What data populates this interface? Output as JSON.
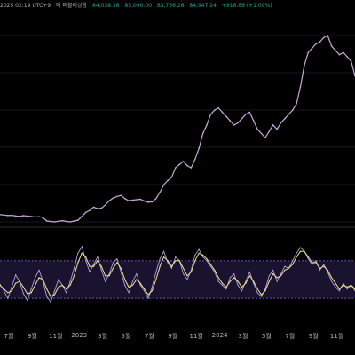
{
  "header": {
    "timestamp": "2025 02:19 UTC+9",
    "note": "에 퍼블리싱함",
    "open": "84,038.38",
    "high": "85,090.00",
    "low": "83,736.26",
    "close": "84,947.24",
    "change": "+916.86 (+1.09%)"
  },
  "colors": {
    "background": "#000000",
    "price_line": "#c8a8d8",
    "oscillator_fast": "#b39ddb",
    "oscillator_slow": "#f0e68c",
    "band_fill": "#1a1330",
    "band_line": "#7e57c2",
    "header_values": "#26a69a"
  },
  "x_axis": {
    "ticks": [
      "7월",
      "9월",
      "11월",
      "2023",
      "3월",
      "5월",
      "7월",
      "9월",
      "11월",
      "2024",
      "3월",
      "5월",
      "7월",
      "9월",
      "11월"
    ]
  },
  "chart_data": [
    {
      "type": "line",
      "title": "",
      "xlabel": "",
      "ylabel": "",
      "series": [
        {
          "values": [
            20000,
            19800,
            19600,
            19700,
            19400,
            19200,
            19500,
            19300,
            19100,
            18900,
            19000,
            18700,
            17000,
            16800,
            16600,
            16900,
            17200,
            16800,
            16600,
            17000,
            17400,
            19200,
            21000,
            22000,
            23500,
            22800,
            23000,
            24500,
            26500,
            27800,
            28500,
            29000,
            27500,
            26500,
            26800,
            27000,
            27200,
            26400,
            25800,
            26000,
            27500,
            30500,
            34000,
            36000,
            37500,
            42000,
            43500,
            45000,
            43000,
            42000,
            46000,
            51000,
            58000,
            62000,
            67000,
            69000,
            70000,
            68000,
            66000,
            64000,
            62000,
            63000,
            65000,
            67000,
            68000,
            64000,
            60000,
            58000,
            56000,
            59000,
            62000,
            60000,
            63000,
            65000,
            67000,
            69000,
            72000,
            80000,
            90000,
            96000,
            98000,
            100000,
            101000,
            103000,
            104000,
            99000,
            97000,
            95000,
            96000,
            94000,
            92000,
            85000
          ]
        }
      ]
    },
    {
      "type": "line",
      "title": "",
      "xlabel": "",
      "ylabel": "",
      "ylim": [
        0,
        100
      ],
      "band": [
        30,
        70
      ],
      "series": [
        {
          "values": [
            45,
            38,
            30,
            42,
            55,
            48,
            35,
            28,
            40,
            52,
            60,
            48,
            32,
            26,
            38,
            50,
            44,
            36,
            48,
            62,
            78,
            85,
            70,
            58,
            66,
            74,
            60,
            48,
            56,
            68,
            72,
            58,
            44,
            36,
            48,
            56,
            44,
            38,
            30,
            42,
            58,
            72,
            80,
            68,
            62,
            74,
            70,
            56,
            50,
            60,
            76,
            82,
            74,
            70,
            64,
            58,
            48,
            44,
            40,
            52,
            56,
            44,
            38,
            48,
            58,
            46,
            36,
            32,
            40,
            54,
            60,
            48,
            56,
            64,
            62,
            70,
            78,
            84,
            80,
            72,
            66,
            70,
            60,
            66,
            58,
            48,
            42,
            38,
            46,
            40,
            44,
            38
          ]
        },
        {
          "values": [
            44,
            40,
            36,
            38,
            46,
            48,
            42,
            35,
            36,
            44,
            52,
            50,
            40,
            32,
            34,
            42,
            44,
            40,
            44,
            54,
            68,
            78,
            74,
            64,
            64,
            70,
            64,
            54,
            54,
            62,
            68,
            62,
            50,
            42,
            44,
            50,
            46,
            40,
            34,
            38,
            50,
            64,
            74,
            70,
            64,
            70,
            70,
            62,
            54,
            58,
            70,
            78,
            76,
            72,
            66,
            60,
            52,
            46,
            42,
            48,
            52,
            48,
            42,
            46,
            54,
            48,
            40,
            34,
            38,
            48,
            56,
            52,
            54,
            60,
            62,
            66,
            74,
            80,
            80,
            74,
            68,
            68,
            62,
            64,
            60,
            52,
            46,
            40,
            44,
            42,
            44,
            40
          ]
        }
      ]
    }
  ]
}
